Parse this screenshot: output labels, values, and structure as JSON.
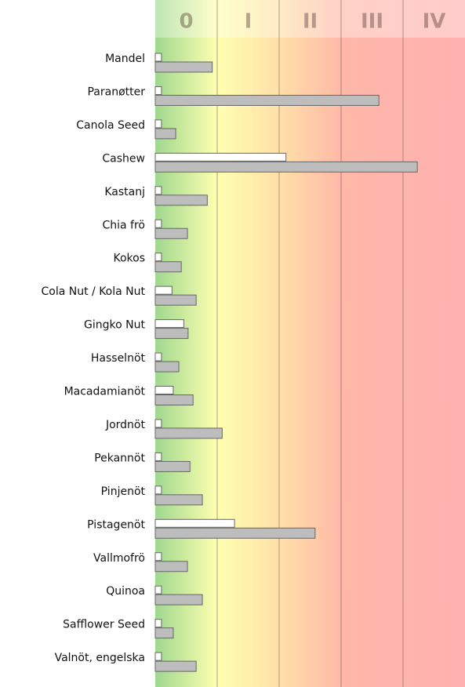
{
  "chart_data": {
    "type": "bar",
    "orientation": "horizontal",
    "categories": [
      "Mandel",
      "Paranøtter",
      "Canola Seed",
      "Cashew",
      "Kastanj",
      "Chia frö",
      "Kokos",
      "Cola Nut / Kola Nut",
      "Gingko Nut",
      "Hasselnöt",
      "Macadamianöt",
      "Jordnöt",
      "Pekannöt",
      "Pinjenöt",
      "Pistagenöt",
      "Vallmofrö",
      "Quinoa",
      "Safflower Seed",
      "Valnöt, engelska"
    ],
    "series": [
      {
        "color": "#ffffff",
        "values": [
          0.1,
          0.1,
          0.1,
          2.11,
          0.1,
          0.1,
          0.1,
          0.27,
          0.46,
          0.1,
          0.29,
          0.1,
          0.1,
          0.1,
          1.28,
          0.1,
          0.1,
          0.1,
          0.1
        ]
      },
      {
        "color": "#bdbdbd",
        "values": [
          0.92,
          3.61,
          0.33,
          4.23,
          0.84,
          0.52,
          0.42,
          0.66,
          0.53,
          0.38,
          0.61,
          1.08,
          0.56,
          0.76,
          2.58,
          0.52,
          0.76,
          0.29,
          0.66
        ]
      }
    ],
    "xlim": [
      0,
      5
    ],
    "xticks": [
      {
        "value": 0.5,
        "label": "0"
      },
      {
        "value": 1.5,
        "label": "I"
      },
      {
        "value": 2.5,
        "label": "II"
      },
      {
        "value": 3.5,
        "label": "III"
      },
      {
        "value": 4.5,
        "label": "IV"
      }
    ],
    "grid": true
  }
}
